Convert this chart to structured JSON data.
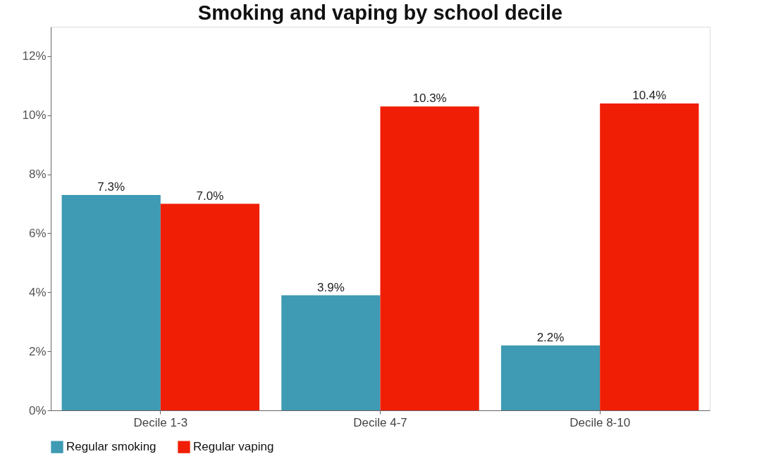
{
  "chart_data": {
    "type": "bar",
    "title": "Smoking and vaping by school decile",
    "categories": [
      "Decile 1-3",
      "Decile 4-7",
      "Decile 8-10"
    ],
    "series": [
      {
        "name": "Regular smoking",
        "color": "#3f9ab3",
        "values": [
          7.3,
          3.9,
          2.2
        ],
        "value_labels": [
          "7.3%",
          "3.9%",
          "2.2%"
        ]
      },
      {
        "name": "Regular vaping",
        "color": "#f01e05",
        "values": [
          7.0,
          10.3,
          10.4
        ],
        "value_labels": [
          "7.0%",
          "10.3%",
          "10.4%"
        ]
      }
    ],
    "ylim": [
      0,
      13
    ],
    "yticks": [
      {
        "value": 0,
        "label": "0%"
      },
      {
        "value": 2,
        "label": "2%"
      },
      {
        "value": 4,
        "label": "4%"
      },
      {
        "value": 6,
        "label": "6%"
      },
      {
        "value": 8,
        "label": "8%"
      },
      {
        "value": 10,
        "label": "10%"
      },
      {
        "value": 12,
        "label": "12%"
      }
    ],
    "grid": false,
    "legend": "bottom"
  }
}
